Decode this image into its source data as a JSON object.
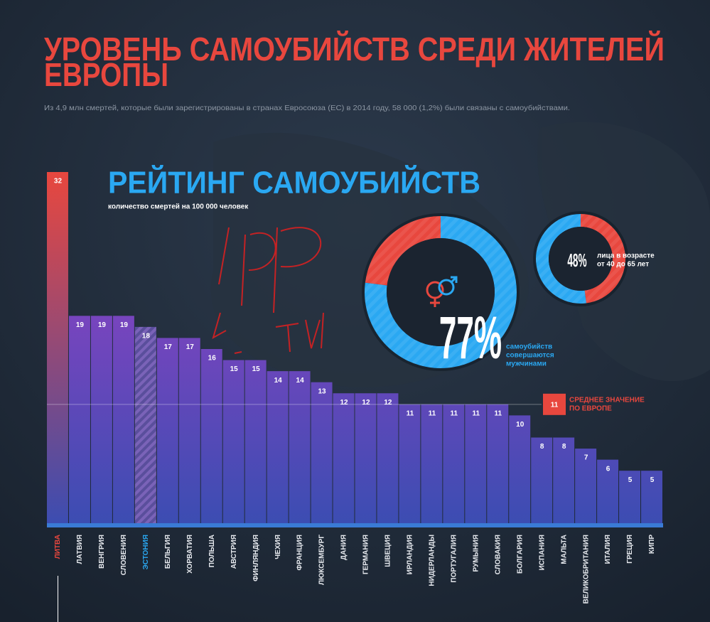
{
  "header": {
    "title_lines": [
      "УРОВЕНЬ САМОУБИЙСТВ СРЕДИ ЖИТЕЛЕЙ",
      "ЕВРОПЫ"
    ],
    "subtitle": "Из 4,9 млн смертей, которые были зарегистрированы в странах Евросоюза (ЕС) в 2014 году, 58 000 (1,2%) были связаны с самоубийствами."
  },
  "chart_data": [
    {
      "type": "bar",
      "title": "РЕЙТИНГ САМОУБИЙСТВ",
      "subtitle": "количество смертей на 100 000 человек",
      "categories": [
        "ЛИТВА",
        "ЛАТВИЯ",
        "ВЕНГРИЯ",
        "СЛОВЕНИЯ",
        "ЭСТОНИЯ",
        "БЕЛЬГИЯ",
        "ХОРВАТИЯ",
        "ПОЛЬША",
        "АВСТРИЯ",
        "ФИНЛЯНДИЯ",
        "ЧЕХИЯ",
        "ФРАНЦИЯ",
        "ЛЮКСЕМБУРГ",
        "ДАНИЯ",
        "ГЕРМАНИЯ",
        "ШВЕЦИЯ",
        "ИРЛАНДИЯ",
        "НИДЕРЛАНДЫ",
        "ПОРТУГАЛИЯ",
        "РУМЫНИЯ",
        "СЛОВАКИЯ",
        "БОЛГАРИЯ",
        "ИСПАНИЯ",
        "МАЛЬТА",
        "ВЕЛИКОБРИТАНИЯ",
        "ИТАЛИЯ",
        "ГРЕЦИЯ",
        "КИПР"
      ],
      "values": [
        32,
        19,
        19,
        19,
        18,
        17,
        17,
        16,
        15,
        15,
        14,
        14,
        13,
        12,
        12,
        12,
        11,
        11,
        11,
        11,
        11,
        10,
        8,
        8,
        7,
        6,
        5,
        5
      ],
      "ylim": [
        0,
        32
      ],
      "color_top": "#a13fc6",
      "color_bottom": "#3b4db2",
      "highlight_index": 0,
      "highlight_color": "#e8473e",
      "hatched_index": 4,
      "hatched_label_color": "#2aa8f2",
      "average": {
        "value": 11,
        "label_lines": [
          "СРЕДНЕЕ ЗНАЧЕНИЕ",
          "ПО ЕВРОПЕ"
        ],
        "color": "#e8473e"
      }
    },
    {
      "type": "donut",
      "value": 77,
      "value_labels": "77%",
      "caption_lines": [
        "самоубийств",
        "совершаются",
        "мужчинами"
      ],
      "color": "#2aa8f2",
      "rest_color": "#e8473e",
      "caption_color": "#2aa8f2"
    },
    {
      "type": "donut",
      "value": 48,
      "value_labels": "48%",
      "caption_lines": [
        "лица в возрасте",
        "от 40 до 65 лет"
      ],
      "color": "#e8473e",
      "rest_color": "#2aa8f2",
      "caption_color": "#ffffff"
    }
  ]
}
